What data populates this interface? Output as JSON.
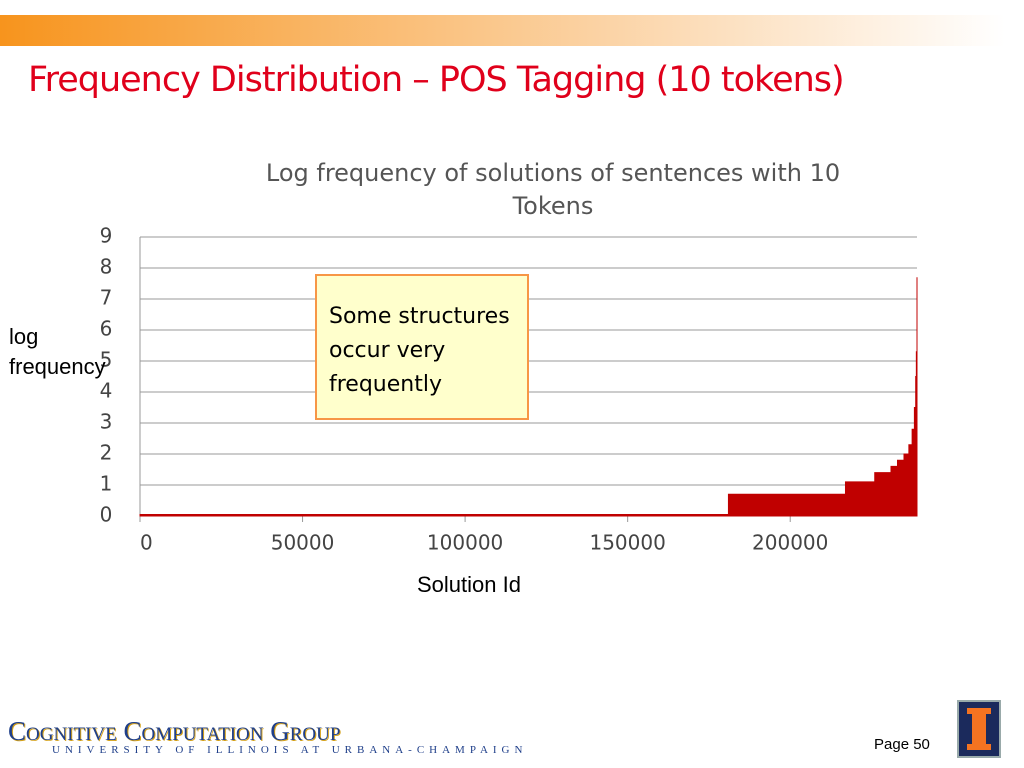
{
  "slide_title": "Frequency Distribution – POS Tagging (10 tokens)",
  "chart_data": {
    "type": "area",
    "title": "Log frequency of solutions of sentences with 10 Tokens",
    "x_label": "Solution Id",
    "y_label": "log frequency",
    "annotation": "Some structures occur very frequently",
    "color": "#c00000",
    "x": [
      0,
      181000,
      217000,
      226000,
      231000,
      233000,
      235000,
      236500,
      237500,
      238200,
      238600,
      238800,
      239000
    ],
    "values": [
      0.05,
      0.7,
      1.1,
      1.4,
      1.6,
      1.8,
      2.0,
      2.3,
      2.8,
      3.5,
      4.5,
      5.3,
      7.7
    ],
    "xlim": [
      0,
      239000
    ],
    "xticks": [
      0,
      50000,
      100000,
      150000,
      200000
    ],
    "ylim": [
      0,
      9
    ],
    "yticks": [
      0,
      1,
      2,
      3,
      4,
      5,
      6,
      7,
      8,
      9
    ],
    "grid": true
  },
  "footer": {
    "group": "Cognitive Computation Group",
    "university": "University of Illinois at Urbana-Champaign",
    "page": "Page 50"
  }
}
